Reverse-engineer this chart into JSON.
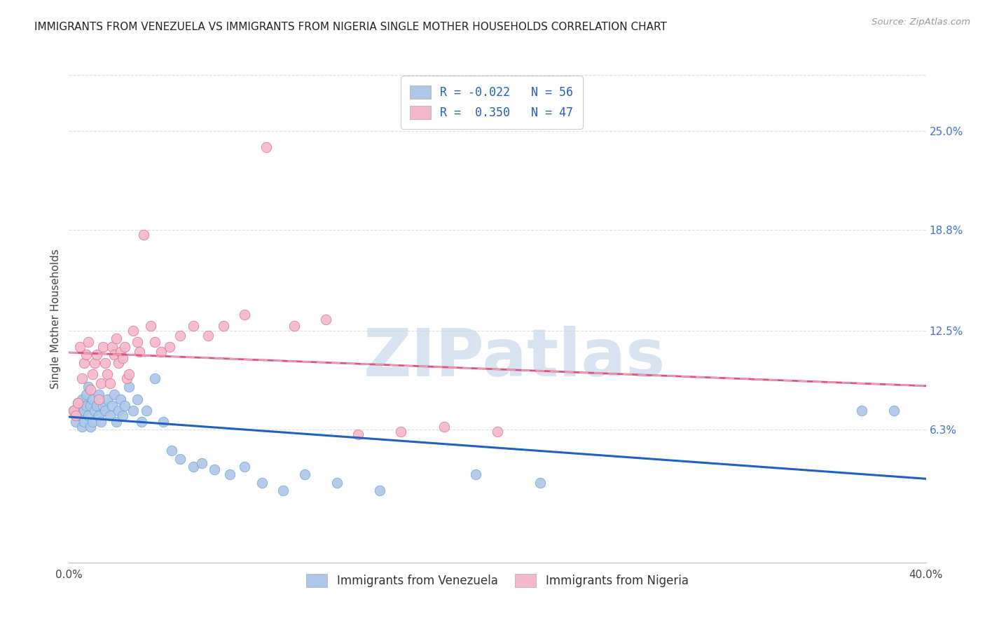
{
  "title": "IMMIGRANTS FROM VENEZUELA VS IMMIGRANTS FROM NIGERIA SINGLE MOTHER HOUSEHOLDS CORRELATION CHART",
  "source": "Source: ZipAtlas.com",
  "ylabel": "Single Mother Households",
  "xlim": [
    0.0,
    0.4
  ],
  "ylim": [
    -0.02,
    0.285
  ],
  "xtick_vals": [
    0.0,
    0.1,
    0.2,
    0.3,
    0.4
  ],
  "xticklabels": [
    "0.0%",
    "",
    "",
    "",
    "40.0%"
  ],
  "ytick_right_vals": [
    0.063,
    0.125,
    0.188,
    0.25
  ],
  "ytick_right_labels": [
    "6.3%",
    "12.5%",
    "18.8%",
    "25.0%"
  ],
  "series_venezuela": {
    "color": "#aec6e8",
    "edge_color": "#5a9fd4",
    "x": [
      0.002,
      0.003,
      0.004,
      0.005,
      0.005,
      0.006,
      0.006,
      0.007,
      0.007,
      0.008,
      0.008,
      0.009,
      0.009,
      0.01,
      0.01,
      0.011,
      0.011,
      0.012,
      0.013,
      0.014,
      0.014,
      0.015,
      0.016,
      0.017,
      0.018,
      0.019,
      0.02,
      0.021,
      0.022,
      0.023,
      0.024,
      0.025,
      0.026,
      0.028,
      0.03,
      0.032,
      0.034,
      0.036,
      0.04,
      0.044,
      0.048,
      0.052,
      0.058,
      0.062,
      0.068,
      0.075,
      0.082,
      0.09,
      0.1,
      0.11,
      0.125,
      0.145,
      0.19,
      0.22,
      0.37,
      0.385
    ],
    "y": [
      0.075,
      0.068,
      0.08,
      0.072,
      0.078,
      0.065,
      0.082,
      0.075,
      0.068,
      0.085,
      0.078,
      0.072,
      0.09,
      0.065,
      0.078,
      0.082,
      0.068,
      0.075,
      0.078,
      0.072,
      0.085,
      0.068,
      0.078,
      0.075,
      0.082,
      0.072,
      0.078,
      0.085,
      0.068,
      0.075,
      0.082,
      0.072,
      0.078,
      0.09,
      0.075,
      0.082,
      0.068,
      0.075,
      0.095,
      0.068,
      0.05,
      0.045,
      0.04,
      0.042,
      0.038,
      0.035,
      0.04,
      0.03,
      0.025,
      0.035,
      0.03,
      0.025,
      0.035,
      0.03,
      0.075,
      0.075
    ]
  },
  "series_nigeria": {
    "color": "#f4b8cc",
    "edge_color": "#d9607a",
    "x": [
      0.002,
      0.003,
      0.004,
      0.005,
      0.006,
      0.007,
      0.008,
      0.009,
      0.01,
      0.011,
      0.012,
      0.013,
      0.014,
      0.015,
      0.016,
      0.017,
      0.018,
      0.019,
      0.02,
      0.021,
      0.022,
      0.023,
      0.024,
      0.025,
      0.026,
      0.027,
      0.028,
      0.03,
      0.032,
      0.033,
      0.035,
      0.038,
      0.04,
      0.043,
      0.047,
      0.052,
      0.058,
      0.065,
      0.072,
      0.082,
      0.092,
      0.105,
      0.12,
      0.135,
      0.155,
      0.175,
      0.2
    ],
    "y": [
      0.075,
      0.072,
      0.08,
      0.115,
      0.095,
      0.105,
      0.11,
      0.118,
      0.088,
      0.098,
      0.105,
      0.11,
      0.082,
      0.092,
      0.115,
      0.105,
      0.098,
      0.092,
      0.115,
      0.11,
      0.12,
      0.105,
      0.112,
      0.108,
      0.115,
      0.095,
      0.098,
      0.125,
      0.118,
      0.112,
      0.185,
      0.128,
      0.118,
      0.112,
      0.115,
      0.122,
      0.128,
      0.122,
      0.128,
      0.135,
      0.24,
      0.128,
      0.132,
      0.06,
      0.062,
      0.065,
      0.062
    ]
  },
  "trendline_venezuela_color": "#2060c0",
  "trendline_nigeria_solid_color": "#e05080",
  "trendline_nigeria_dash_color": "#e8a0b0",
  "watermark_text": "ZIPatlas",
  "watermark_color": "#c8d8ec",
  "background_color": "#ffffff",
  "grid_color": "#dddddd",
  "title_fontsize": 11,
  "right_axis_color": "#4472c4",
  "scatter_size": 110,
  "legend_label_color": "#2060c0"
}
